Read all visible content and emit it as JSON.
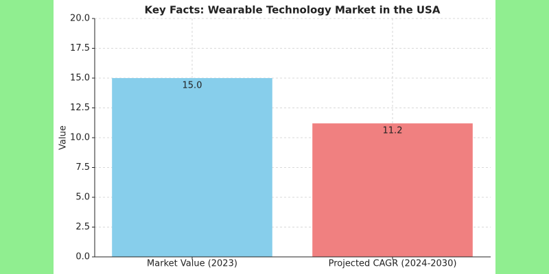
{
  "chart_data": {
    "type": "bar",
    "title": "Key Facts: Wearable Technology Market in the USA",
    "y_label": "Value",
    "categories": [
      "Market Value (2023)",
      "Projected CAGR (2024-2030)"
    ],
    "values": [
      15.0,
      11.2
    ],
    "value_labels": [
      "15.0",
      "11.2"
    ],
    "colors": [
      "#87ceeb",
      "#f08080"
    ],
    "ylim": [
      0,
      20
    ],
    "yticks": [
      {
        "value": 0,
        "label": "0.0"
      },
      {
        "value": 2.5,
        "label": "2.5"
      },
      {
        "value": 5,
        "label": "5.0"
      },
      {
        "value": 7.5,
        "label": "7.5"
      },
      {
        "value": 10,
        "label": "10.0"
      },
      {
        "value": 12.5,
        "label": "12.5"
      },
      {
        "value": 15,
        "label": "15.0"
      },
      {
        "value": 17.5,
        "label": "17.5"
      },
      {
        "value": 20,
        "label": "20.0"
      }
    ],
    "grid": true
  }
}
